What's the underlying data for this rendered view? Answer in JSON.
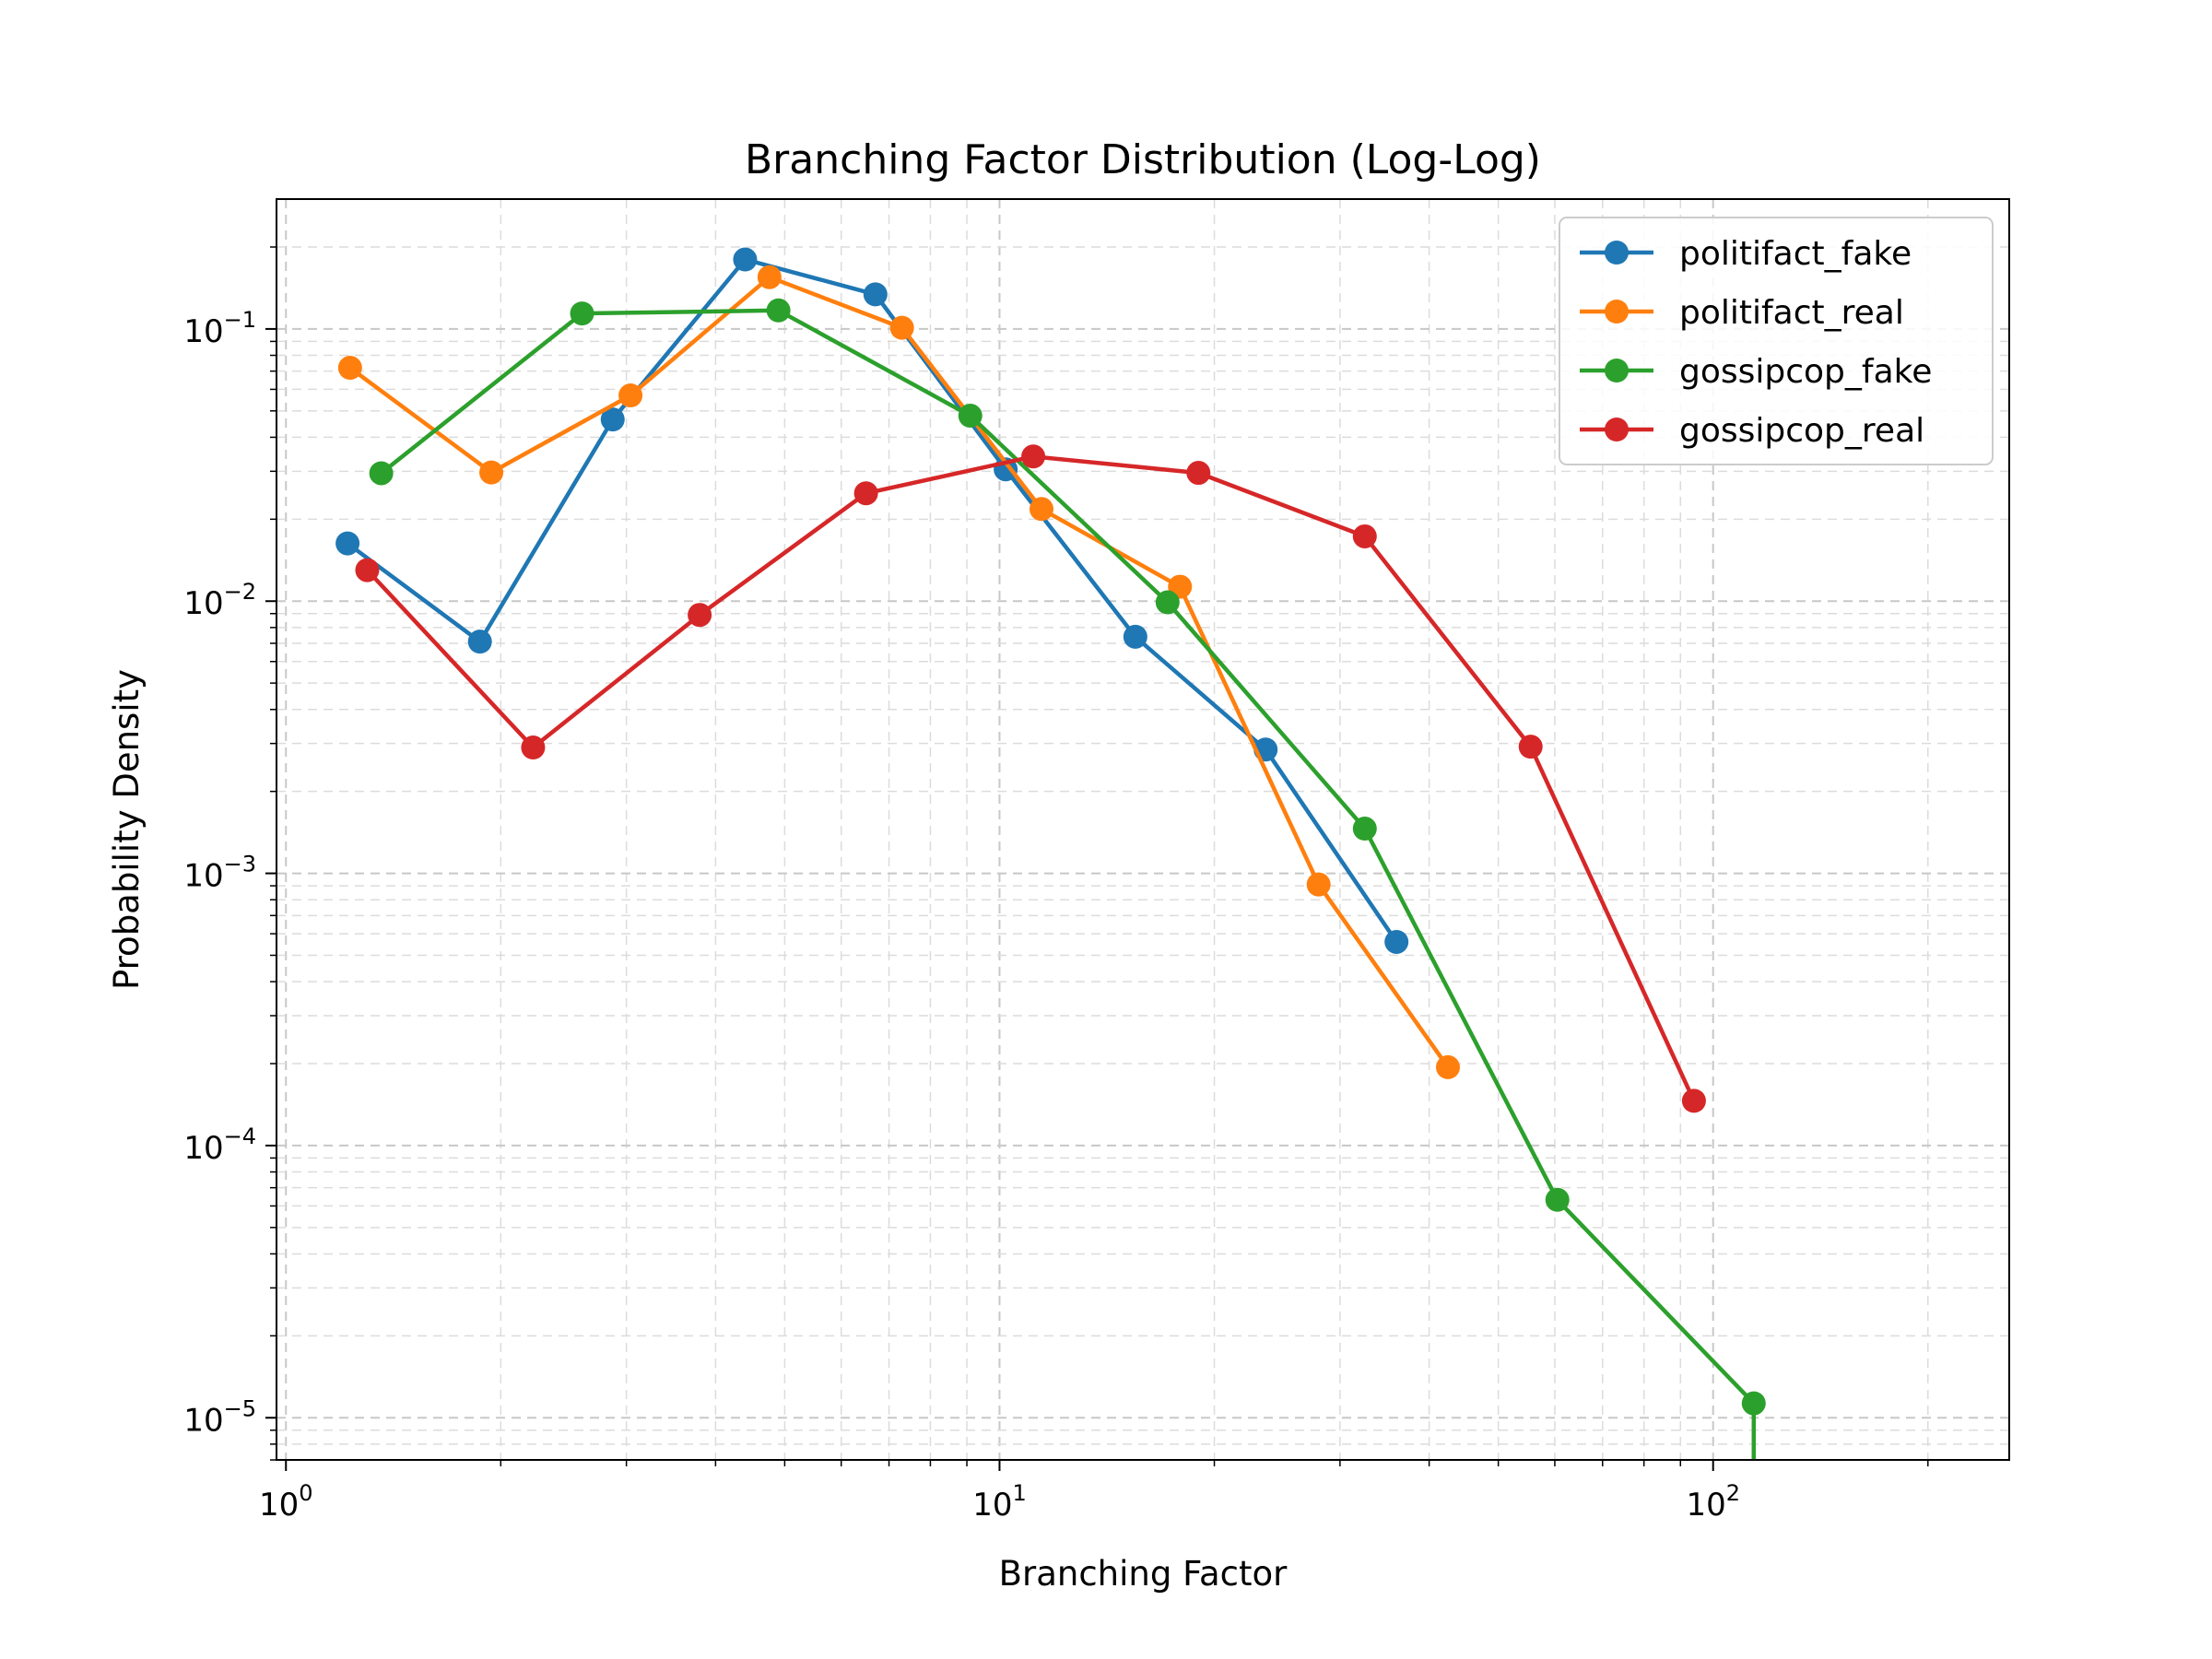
{
  "chart_data": {
    "type": "line",
    "title": "Branching Factor Distribution (Log-Log)",
    "xlabel": "Branching Factor",
    "ylabel": "Probability Density",
    "xscale": "log",
    "yscale": "log",
    "xlim": [
      0.97,
      260
    ],
    "ylim": [
      7e-06,
      0.3
    ],
    "grid": true,
    "legend_position": "top-right",
    "x_ticks": [
      {
        "base": "10",
        "exp": "0",
        "value": 1
      },
      {
        "base": "10",
        "exp": "1",
        "value": 10
      },
      {
        "base": "10",
        "exp": "2",
        "value": 100
      }
    ],
    "y_ticks": [
      {
        "base": "10",
        "exp": "−5",
        "value": 1e-05
      },
      {
        "base": "10",
        "exp": "−4",
        "value": 0.0001
      },
      {
        "base": "10",
        "exp": "−3",
        "value": 0.001
      },
      {
        "base": "10",
        "exp": "−2",
        "value": 0.01
      },
      {
        "base": "10",
        "exp": "−1",
        "value": 0.1
      }
    ],
    "series": [
      {
        "name": "politifact_fake",
        "color": "#1f77b4",
        "x": [
          1.22,
          1.87,
          2.87,
          4.4,
          6.7,
          10.2,
          15.5,
          23.6,
          36.0
        ],
        "y": [
          0.0163,
          0.0071,
          0.0465,
          0.18,
          0.134,
          0.0305,
          0.0074,
          0.00285,
          0.00056
        ]
      },
      {
        "name": "politifact_real",
        "color": "#ff7f0e",
        "x": [
          1.23,
          1.94,
          3.04,
          4.76,
          7.3,
          11.45,
          17.9,
          28.0,
          42.5
        ],
        "y": [
          0.072,
          0.0297,
          0.057,
          0.155,
          0.101,
          0.0218,
          0.0113,
          0.00091,
          0.000194
        ]
      },
      {
        "name": "gossipcop_fake",
        "color": "#2ca02c",
        "x": [
          1.36,
          2.6,
          4.9,
          9.1,
          17.2,
          32.5,
          60.5,
          114.0,
          114.0
        ],
        "y": [
          0.0295,
          0.114,
          0.117,
          0.048,
          0.0099,
          0.00146,
          6.32e-05,
          1.13e-05,
          7e-06
        ]
      },
      {
        "name": "gossipcop_real",
        "color": "#d62728",
        "x": [
          1.3,
          2.22,
          3.8,
          6.5,
          11.15,
          19.0,
          32.5,
          55.5,
          94.0
        ],
        "y": [
          0.013,
          0.0029,
          0.0089,
          0.0249,
          0.034,
          0.0296,
          0.0173,
          0.00292,
          0.000146
        ]
      }
    ]
  }
}
